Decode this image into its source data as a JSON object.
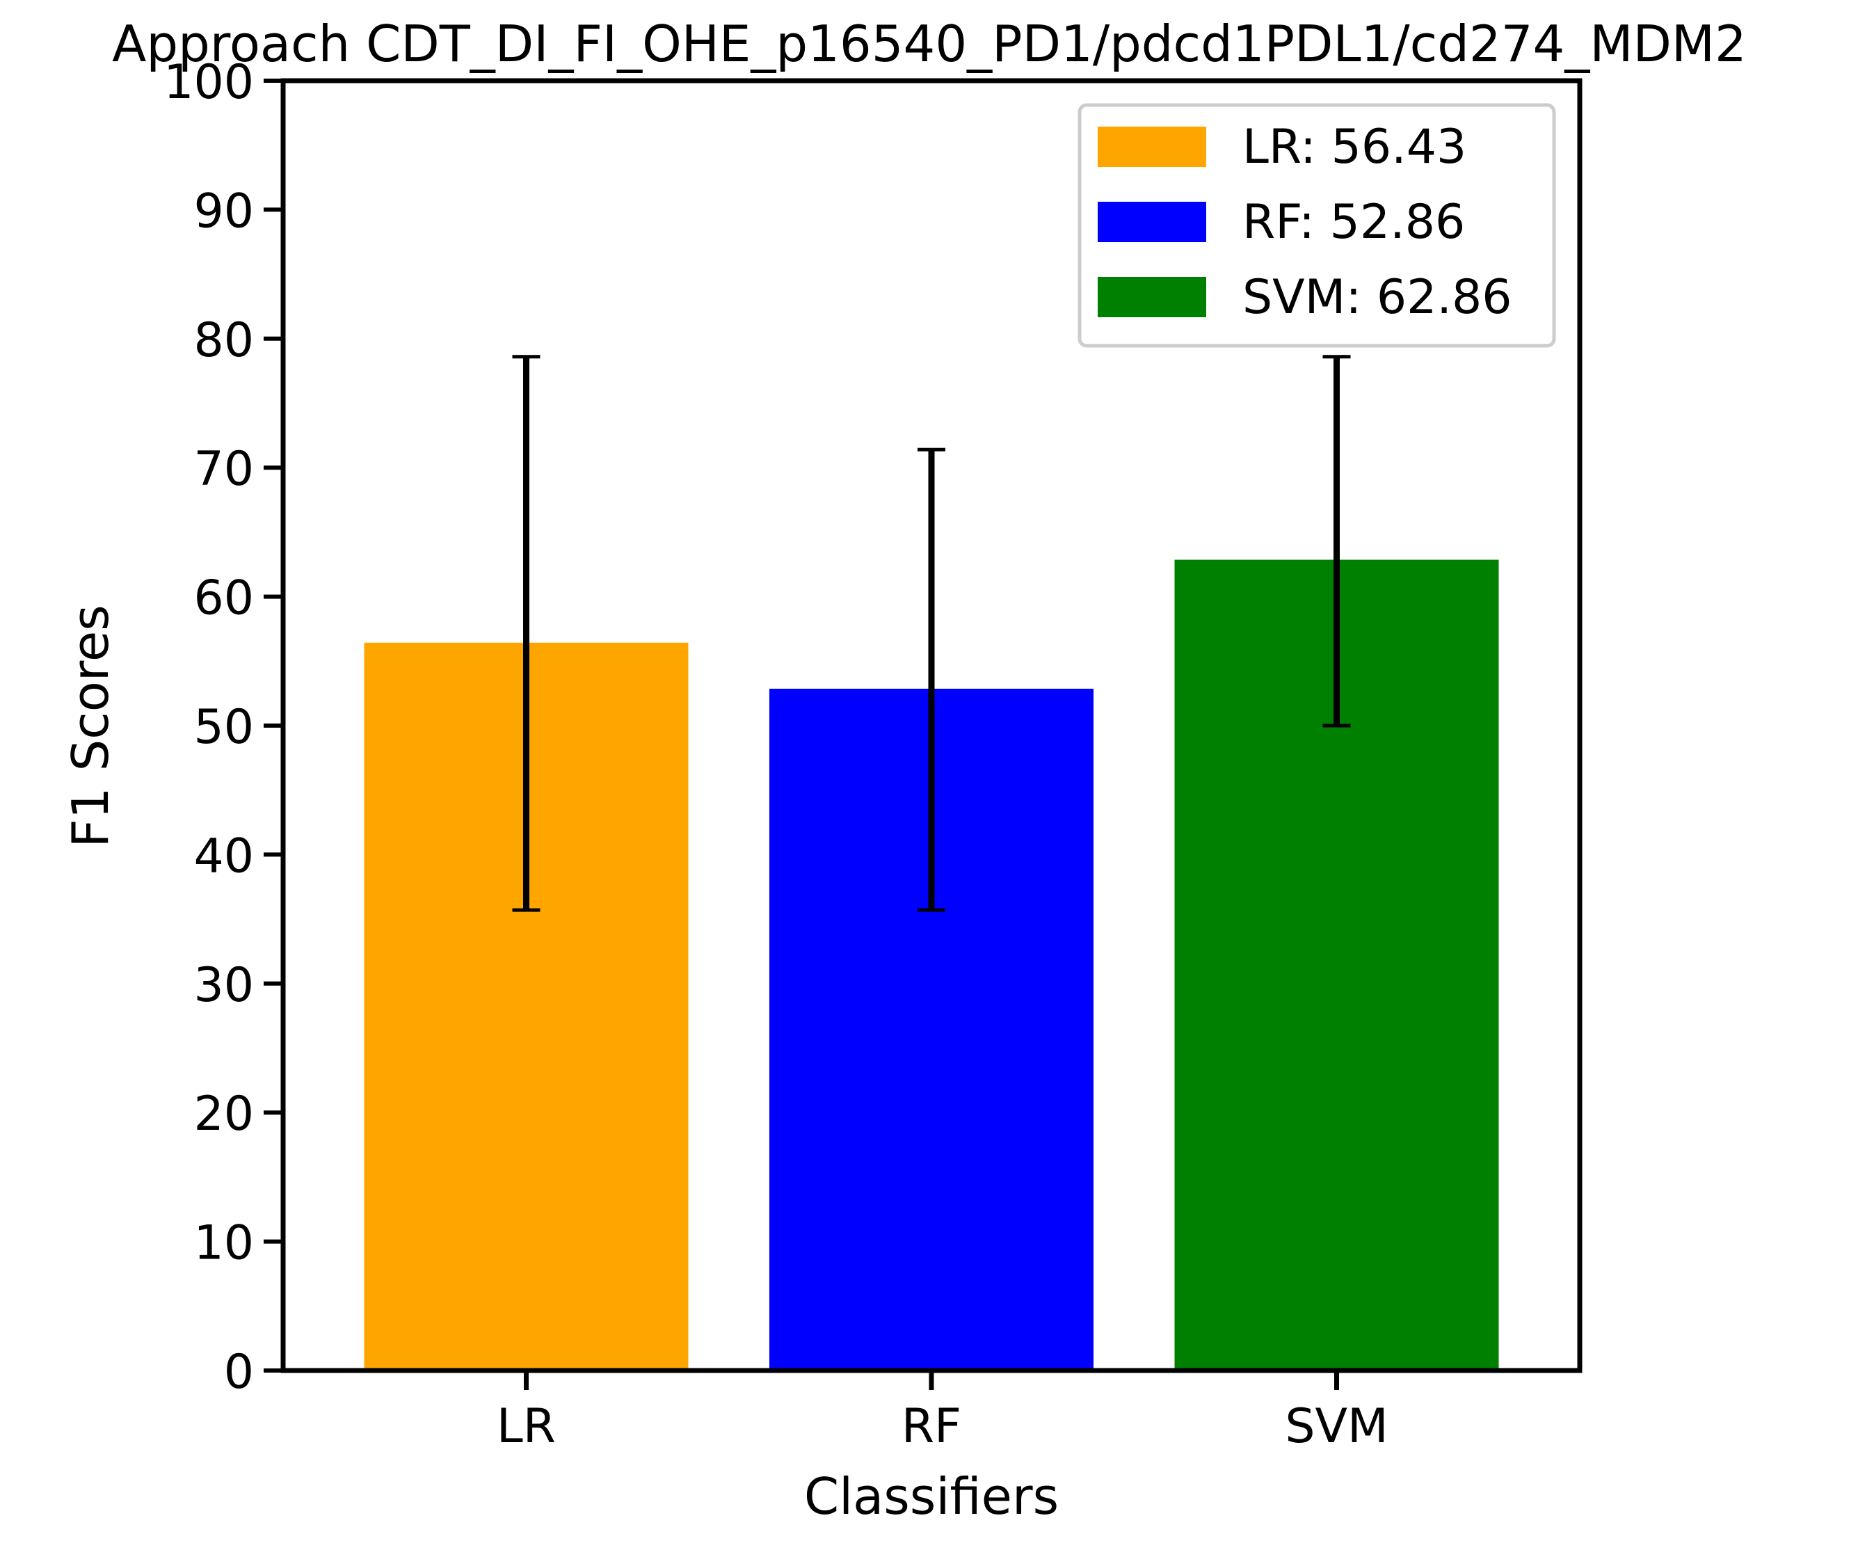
{
  "chart_data": {
    "type": "bar",
    "title": "Approach CDT_DI_FI_OHE_p16540_PD1/pdcd1PDL1/cd274_MDM2",
    "xlabel": "Classifiers",
    "ylabel": "F1 Scores",
    "ylim": [
      0,
      100
    ],
    "yticks": [
      0,
      10,
      20,
      30,
      40,
      50,
      60,
      70,
      80,
      90,
      100
    ],
    "ytick_labels": [
      "0",
      "10",
      "20",
      "30",
      "40",
      "50",
      "60",
      "70",
      "80",
      "90",
      "100"
    ],
    "categories": [
      "LR",
      "RF",
      "SVM"
    ],
    "values": [
      56.43,
      52.86,
      62.86
    ],
    "error_low": [
      35.7,
      35.7,
      50.0
    ],
    "error_high": [
      78.6,
      71.4,
      78.6
    ],
    "colors": [
      "#ffa500",
      "#0000ff",
      "#008000"
    ],
    "legend": {
      "position": "top-right",
      "entries": [
        "LR: 56.43",
        "RF: 52.86",
        "SVM: 62.86"
      ]
    },
    "grid": false
  }
}
